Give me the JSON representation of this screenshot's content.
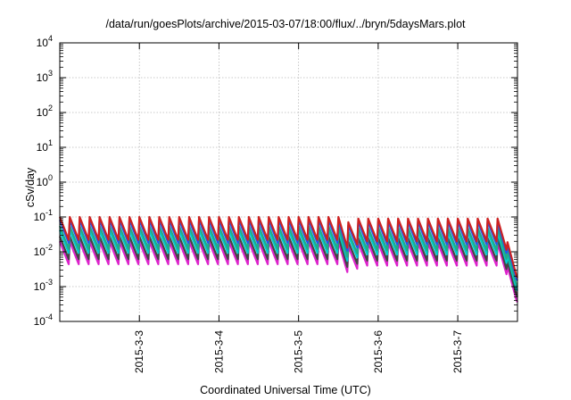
{
  "chart_data": {
    "type": "line",
    "title": "/data/run/goesPlots/archive/2015-03-07/18:00/flux/../bryn/5daysMars.plot",
    "xlabel": "Coordinated Universal Time (UTC)",
    "ylabel": "cSv/day",
    "yscale": "log",
    "ylim": [
      0.0001,
      10000
    ],
    "y_ticks": [
      "10-4",
      "10-3",
      "10-2",
      "10-1",
      "100",
      "101",
      "102",
      "103",
      "104"
    ],
    "xlim": [
      "2015-03-02T00:00",
      "2015-03-07T18:00"
    ],
    "x_ticks": [
      "2015-3-3",
      "2015-3-4",
      "2015-3-5",
      "2015-3-6",
      "2015-3-7"
    ],
    "grid": true,
    "series_colors": [
      "#cc2222",
      "#2255ee",
      "#22aa88",
      "#00cccc",
      "#444444",
      "#dd22cc"
    ],
    "series_ratios_to_top": [
      1.0,
      0.82,
      0.55,
      0.42,
      0.28,
      0.2
    ],
    "envelope_top_series": {
      "description_units": "cSv/day",
      "x": [
        "2015-03-02T00:00",
        "2015-03-05T14:00",
        "2015-03-05T16:00",
        "2015-03-05T18:00",
        "2015-03-07T14:00",
        "2015-03-07T16:00",
        "2015-03-07T18:00"
      ],
      "peak": [
        0.1,
        0.1,
        0.05,
        0.09,
        0.09,
        0.004,
        0.0018
      ],
      "trough": [
        0.022,
        0.022,
        0.005,
        0.02,
        0.02,
        0.004,
        0.0018
      ]
    },
    "oscillation_period_hours": 3
  }
}
